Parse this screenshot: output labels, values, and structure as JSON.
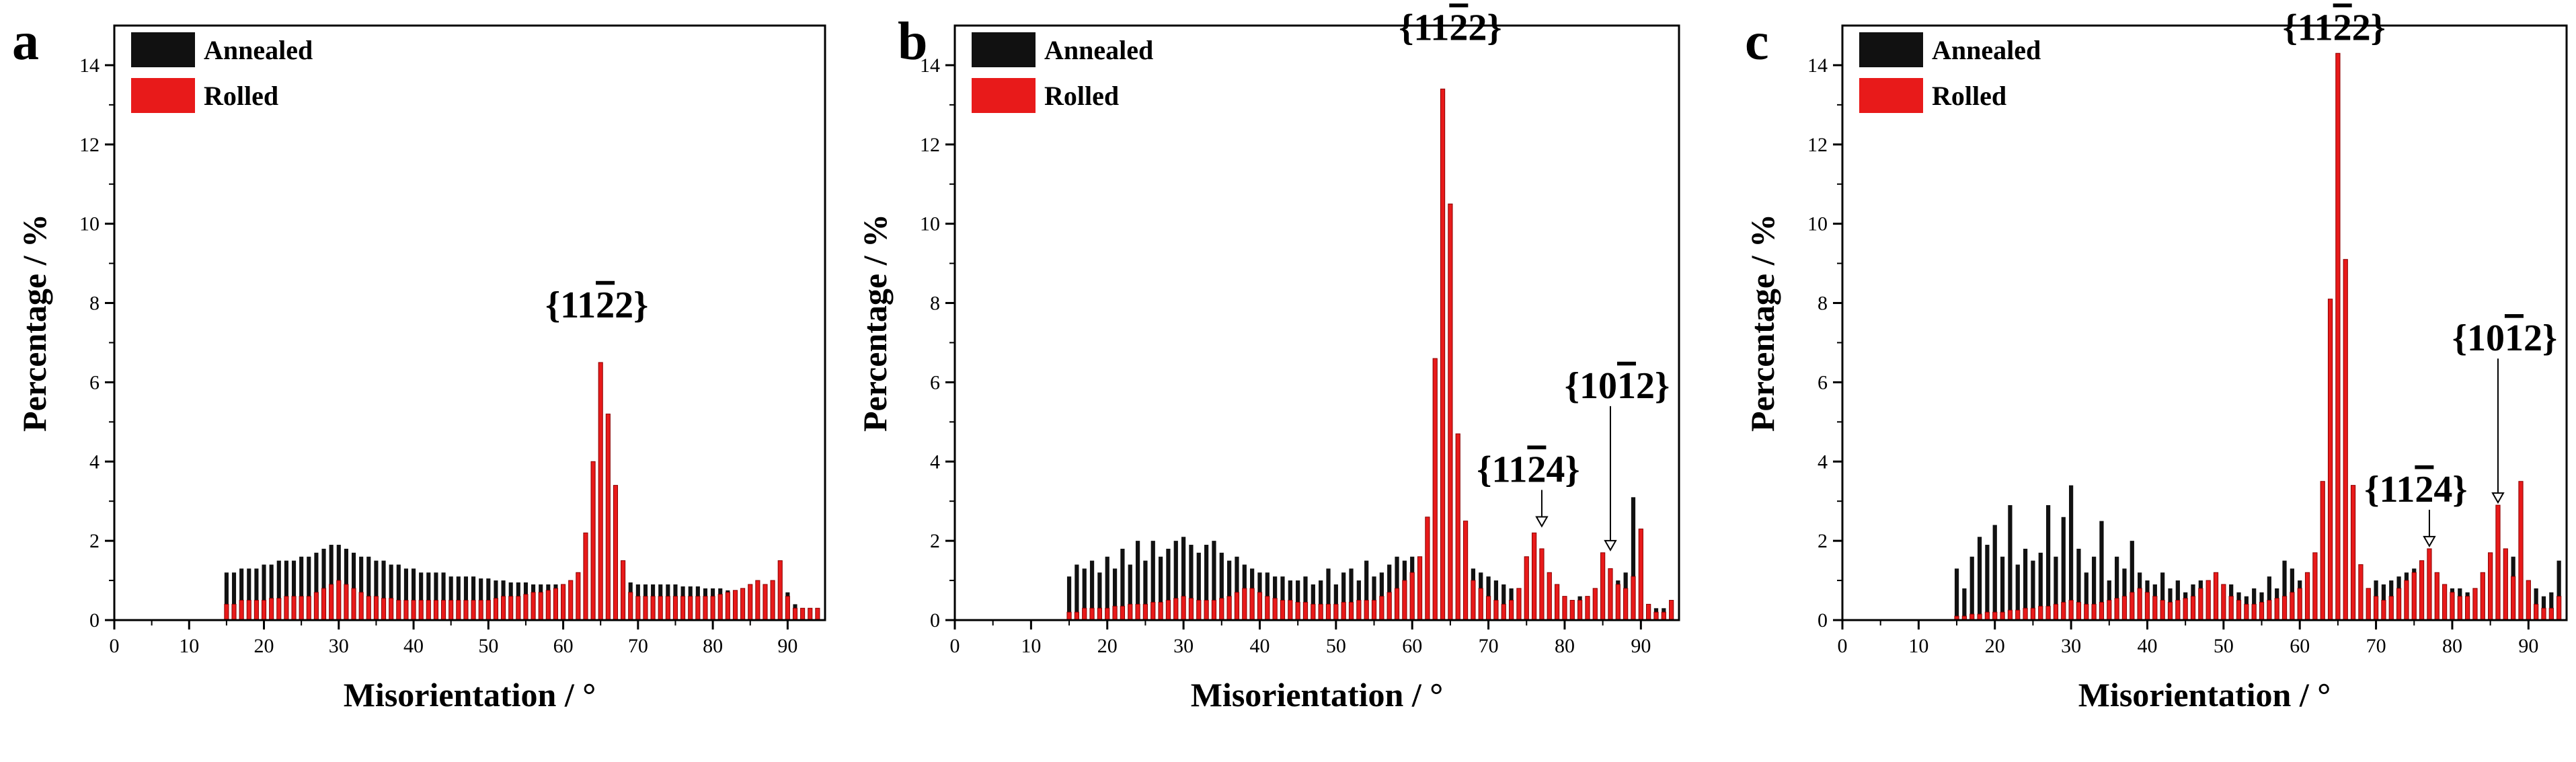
{
  "chart_data": [
    {
      "type": "bar",
      "panel": "a",
      "xlabel": "Misorientation / °",
      "ylabel": "Percentage / %",
      "xlim": [
        0,
        95
      ],
      "ylim": [
        0,
        15
      ],
      "xticks": [
        "0",
        "10",
        "20",
        "30",
        "40",
        "50",
        "60",
        "70",
        "80",
        "90"
      ],
      "yticks": [
        "0",
        "2",
        "4",
        "6",
        "8",
        "10",
        "12",
        "14"
      ],
      "legend": [
        "Annealed",
        "Rolled"
      ],
      "colors": {
        "annealed": "#111111",
        "rolled": "#e81a1a"
      },
      "x": [
        15,
        16,
        17,
        18,
        19,
        20,
        21,
        22,
        23,
        24,
        25,
        26,
        27,
        28,
        29,
        30,
        31,
        32,
        33,
        34,
        35,
        36,
        37,
        38,
        39,
        40,
        41,
        42,
        43,
        44,
        45,
        46,
        47,
        48,
        49,
        50,
        51,
        52,
        53,
        54,
        55,
        56,
        57,
        58,
        59,
        60,
        61,
        62,
        63,
        64,
        65,
        66,
        67,
        68,
        69,
        70,
        71,
        72,
        73,
        74,
        75,
        76,
        77,
        78,
        79,
        80,
        81,
        82,
        83,
        84,
        85,
        86,
        87,
        88,
        89,
        90,
        91,
        92,
        93,
        94
      ],
      "series": [
        {
          "name": "Annealed",
          "values": [
            1.2,
            1.2,
            1.3,
            1.3,
            1.3,
            1.4,
            1.4,
            1.5,
            1.5,
            1.5,
            1.6,
            1.6,
            1.7,
            1.8,
            1.9,
            1.9,
            1.8,
            1.7,
            1.6,
            1.6,
            1.5,
            1.5,
            1.4,
            1.4,
            1.3,
            1.3,
            1.2,
            1.2,
            1.2,
            1.2,
            1.1,
            1.1,
            1.1,
            1.1,
            1.05,
            1.05,
            1.0,
            1.0,
            0.95,
            0.95,
            0.95,
            0.9,
            0.9,
            0.9,
            0.9,
            0.9,
            0.9,
            0.9,
            1.0,
            1.0,
            1.1,
            1.1,
            1.0,
            1.0,
            0.95,
            0.9,
            0.9,
            0.9,
            0.9,
            0.9,
            0.9,
            0.85,
            0.85,
            0.85,
            0.8,
            0.8,
            0.8,
            0.75,
            0.7,
            0.7,
            0.7,
            0.7,
            0.7,
            0.7,
            0.7,
            0.7,
            0.4,
            0.3,
            0.3,
            0.3
          ]
        },
        {
          "name": "Rolled",
          "values": [
            0.4,
            0.4,
            0.5,
            0.5,
            0.5,
            0.5,
            0.55,
            0.55,
            0.6,
            0.6,
            0.6,
            0.6,
            0.7,
            0.8,
            0.9,
            1.0,
            0.9,
            0.8,
            0.7,
            0.6,
            0.6,
            0.55,
            0.55,
            0.5,
            0.5,
            0.5,
            0.5,
            0.5,
            0.5,
            0.5,
            0.5,
            0.5,
            0.5,
            0.5,
            0.5,
            0.5,
            0.55,
            0.6,
            0.6,
            0.6,
            0.65,
            0.7,
            0.7,
            0.75,
            0.8,
            0.9,
            1.0,
            1.2,
            2.2,
            4.0,
            6.5,
            5.2,
            3.4,
            1.5,
            0.7,
            0.6,
            0.6,
            0.6,
            0.6,
            0.6,
            0.6,
            0.6,
            0.6,
            0.6,
            0.6,
            0.6,
            0.65,
            0.7,
            0.75,
            0.8,
            0.9,
            1.0,
            0.9,
            1.0,
            1.5,
            0.6,
            0.3,
            0.3,
            0.3,
            0.3
          ]
        }
      ],
      "annotations": [
        {
          "label": "{11 2 2}",
          "x": 64.5,
          "y": 7.3,
          "overline_index": 2
        }
      ]
    },
    {
      "type": "bar",
      "panel": "b",
      "xlabel": "Misorientation / °",
      "ylabel": "Percentage / %",
      "xlim": [
        0,
        95
      ],
      "ylim": [
        0,
        15
      ],
      "xticks": [
        "0",
        "10",
        "20",
        "30",
        "40",
        "50",
        "60",
        "70",
        "80",
        "90"
      ],
      "yticks": [
        "0",
        "2",
        "4",
        "6",
        "8",
        "10",
        "12",
        "14"
      ],
      "legend": [
        "Annealed",
        "Rolled"
      ],
      "colors": {
        "annealed": "#111111",
        "rolled": "#e81a1a"
      },
      "x": [
        15,
        16,
        17,
        18,
        19,
        20,
        21,
        22,
        23,
        24,
        25,
        26,
        27,
        28,
        29,
        30,
        31,
        32,
        33,
        34,
        35,
        36,
        37,
        38,
        39,
        40,
        41,
        42,
        43,
        44,
        45,
        46,
        47,
        48,
        49,
        50,
        51,
        52,
        53,
        54,
        55,
        56,
        57,
        58,
        59,
        60,
        61,
        62,
        63,
        64,
        65,
        66,
        67,
        68,
        69,
        70,
        71,
        72,
        73,
        74,
        75,
        76,
        77,
        78,
        79,
        80,
        81,
        82,
        83,
        84,
        85,
        86,
        87,
        88,
        89,
        90,
        91,
        92,
        93,
        94
      ],
      "series": [
        {
          "name": "Annealed",
          "values": [
            1.1,
            1.4,
            1.3,
            1.5,
            1.2,
            1.6,
            1.3,
            1.8,
            1.4,
            2.0,
            1.5,
            2.0,
            1.6,
            1.8,
            2.0,
            2.1,
            1.9,
            1.7,
            1.9,
            2.0,
            1.7,
            1.5,
            1.6,
            1.4,
            1.3,
            1.2,
            1.2,
            1.1,
            1.1,
            1.0,
            1.0,
            1.1,
            0.9,
            1.0,
            1.3,
            0.9,
            1.2,
            1.3,
            1.0,
            1.5,
            1.1,
            1.2,
            1.4,
            1.6,
            1.5,
            1.6,
            1.2,
            1.1,
            1.2,
            1.3,
            1.4,
            1.3,
            1.3,
            1.3,
            1.2,
            1.1,
            1.0,
            0.9,
            0.8,
            0.7,
            0.8,
            0.8,
            0.7,
            0.7,
            0.6,
            0.6,
            0.5,
            0.6,
            0.5,
            0.6,
            0.7,
            0.8,
            1.0,
            1.2,
            3.1,
            0.5,
            0.4,
            0.3,
            0.3,
            0.4
          ]
        },
        {
          "name": "Rolled",
          "values": [
            0.2,
            0.2,
            0.3,
            0.3,
            0.3,
            0.3,
            0.35,
            0.35,
            0.4,
            0.4,
            0.4,
            0.45,
            0.45,
            0.5,
            0.55,
            0.6,
            0.55,
            0.5,
            0.5,
            0.5,
            0.55,
            0.6,
            0.7,
            0.8,
            0.8,
            0.7,
            0.6,
            0.55,
            0.5,
            0.5,
            0.45,
            0.45,
            0.4,
            0.4,
            0.4,
            0.4,
            0.45,
            0.45,
            0.5,
            0.5,
            0.5,
            0.6,
            0.7,
            0.8,
            1.0,
            1.2,
            1.6,
            2.6,
            6.6,
            13.4,
            10.5,
            4.7,
            2.5,
            1.0,
            0.8,
            0.6,
            0.5,
            0.4,
            0.5,
            0.8,
            1.6,
            2.2,
            1.8,
            1.2,
            0.9,
            0.6,
            0.5,
            0.5,
            0.6,
            0.8,
            1.7,
            1.3,
            0.9,
            0.8,
            1.1,
            2.3,
            0.4,
            0.2,
            0.2,
            0.5
          ]
        }
      ],
      "annotations": [
        {
          "label": "{11 2 2}",
          "x": 65,
          "y": 14.3,
          "overline_index": 2
        },
        {
          "label": "{11 2 4}",
          "x": 77,
          "y": 2.3,
          "overline_index": 2
        },
        {
          "label": "{10 1 2}",
          "x": 86,
          "y": 1.7,
          "overline_index": 2
        }
      ]
    },
    {
      "type": "bar",
      "panel": "c",
      "xlabel": "Misorientation / °",
      "ylabel": "Percentage / %",
      "xlim": [
        0,
        95
      ],
      "ylim": [
        0,
        15
      ],
      "xticks": [
        "0",
        "10",
        "20",
        "30",
        "40",
        "50",
        "60",
        "70",
        "80",
        "90"
      ],
      "yticks": [
        "0",
        "2",
        "4",
        "6",
        "8",
        "10",
        "12",
        "14"
      ],
      "legend": [
        "Annealed",
        "Rolled"
      ],
      "colors": {
        "annealed": "#111111",
        "rolled": "#e81a1a"
      },
      "x": [
        15,
        16,
        17,
        18,
        19,
        20,
        21,
        22,
        23,
        24,
        25,
        26,
        27,
        28,
        29,
        30,
        31,
        32,
        33,
        34,
        35,
        36,
        37,
        38,
        39,
        40,
        41,
        42,
        43,
        44,
        45,
        46,
        47,
        48,
        49,
        50,
        51,
        52,
        53,
        54,
        55,
        56,
        57,
        58,
        59,
        60,
        61,
        62,
        63,
        64,
        65,
        66,
        67,
        68,
        69,
        70,
        71,
        72,
        73,
        74,
        75,
        76,
        77,
        78,
        79,
        80,
        81,
        82,
        83,
        84,
        85,
        86,
        87,
        88,
        89,
        90,
        91,
        92,
        93,
        94
      ],
      "series": [
        {
          "name": "Annealed",
          "values": [
            1.3,
            0.8,
            1.6,
            2.1,
            1.9,
            2.4,
            1.6,
            2.9,
            1.4,
            1.8,
            1.5,
            1.7,
            2.9,
            1.6,
            2.6,
            3.4,
            1.8,
            1.2,
            1.6,
            2.5,
            1.0,
            1.6,
            1.3,
            2.0,
            1.2,
            1.0,
            0.9,
            1.2,
            0.8,
            1.0,
            0.7,
            0.9,
            1.0,
            0.8,
            0.6,
            0.8,
            0.9,
            0.7,
            0.6,
            0.8,
            0.7,
            1.1,
            0.8,
            1.5,
            1.3,
            1.0,
            0.9,
            1.4,
            1.2,
            1.3,
            1.5,
            1.1,
            1.0,
            0.9,
            0.8,
            1.0,
            0.9,
            1.0,
            1.1,
            1.2,
            1.3,
            1.1,
            1.2,
            0.9,
            0.9,
            0.8,
            0.8,
            0.7,
            0.8,
            0.9,
            1.0,
            1.2,
            1.4,
            1.6,
            2.2,
            1.0,
            0.8,
            0.6,
            0.7,
            1.5
          ]
        },
        {
          "name": "Rolled",
          "values": [
            0.1,
            0.1,
            0.15,
            0.15,
            0.2,
            0.2,
            0.2,
            0.25,
            0.25,
            0.3,
            0.3,
            0.35,
            0.35,
            0.4,
            0.45,
            0.5,
            0.45,
            0.4,
            0.4,
            0.45,
            0.5,
            0.55,
            0.6,
            0.7,
            0.8,
            0.7,
            0.6,
            0.5,
            0.45,
            0.5,
            0.55,
            0.6,
            0.8,
            1.0,
            1.2,
            0.9,
            0.6,
            0.5,
            0.4,
            0.4,
            0.45,
            0.5,
            0.55,
            0.6,
            0.7,
            0.8,
            1.2,
            1.7,
            3.5,
            8.1,
            14.3,
            9.1,
            3.4,
            1.4,
            0.8,
            0.6,
            0.5,
            0.6,
            0.8,
            1.0,
            1.2,
            1.5,
            1.8,
            1.2,
            0.9,
            0.7,
            0.6,
            0.6,
            0.8,
            1.2,
            1.7,
            2.9,
            1.8,
            1.1,
            3.5,
            1.0,
            0.4,
            0.3,
            0.3,
            0.6
          ]
        }
      ],
      "annotations": [
        {
          "label": "{11 2 2}",
          "x": 64.5,
          "y": 14.3,
          "overline_index": 2
        },
        {
          "label": "{11 2 4}",
          "x": 77,
          "y": 1.8,
          "overline_index": 2
        },
        {
          "label": "{10 1 2}",
          "x": 86,
          "y": 2.9,
          "overline_index": 2
        }
      ]
    }
  ]
}
